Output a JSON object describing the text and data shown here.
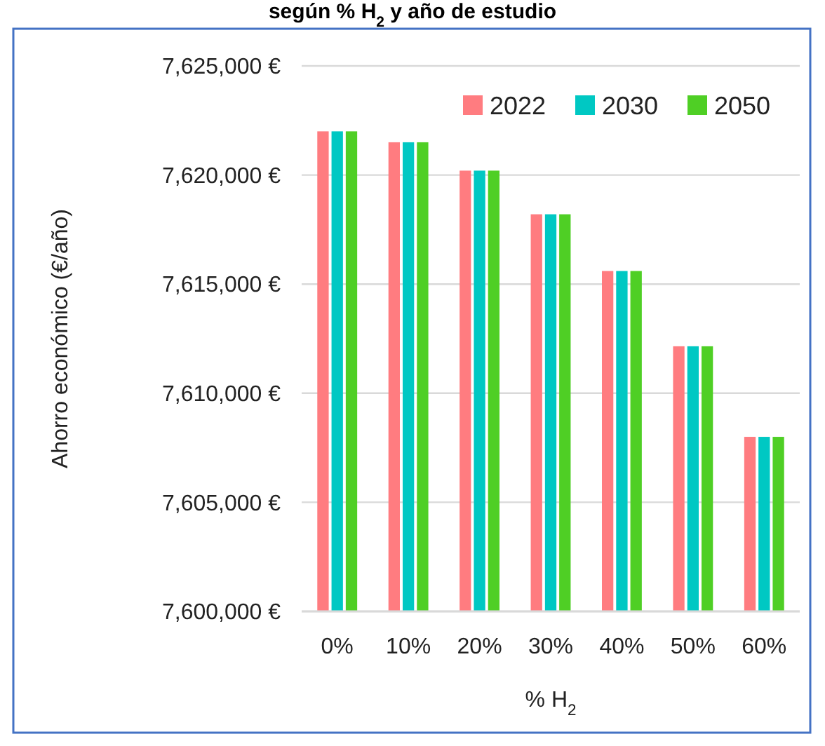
{
  "chart_data": {
    "type": "bar",
    "title": "según % H$_{2}$ y año de estudio",
    "xlabel": "% H$_{2}$",
    "ylabel": "Ahorro económico (€/año)",
    "categories": [
      "0%",
      "10%",
      "20%",
      "30%",
      "40%",
      "50%",
      "60%"
    ],
    "series": [
      {
        "name": "2022",
        "color": "#ff7c80",
        "values": [
          7622000,
          7621500,
          7620200,
          7618200,
          7615600,
          7612150,
          7608000
        ]
      },
      {
        "name": "2030",
        "color": "#00c8c3",
        "values": [
          7622000,
          7621500,
          7620200,
          7618200,
          7615600,
          7612150,
          7608000
        ]
      },
      {
        "name": "2050",
        "color": "#4fcf25",
        "values": [
          7622000,
          7621500,
          7620200,
          7618200,
          7615600,
          7612150,
          7608000
        ]
      }
    ],
    "ylim": [
      7600000,
      7625000
    ],
    "yticks": [
      {
        "value": 7600000,
        "label": "7,600,000 €"
      },
      {
        "value": 7605000,
        "label": "7,605,000 €"
      },
      {
        "value": 7610000,
        "label": "7,610,000 €"
      },
      {
        "value": 7615000,
        "label": "7,615,000 €"
      },
      {
        "value": 7620000,
        "label": "7,620,000 €"
      },
      {
        "value": 7625000,
        "label": "7,625,000 €"
      }
    ],
    "grid": "y",
    "legend": "top right"
  }
}
